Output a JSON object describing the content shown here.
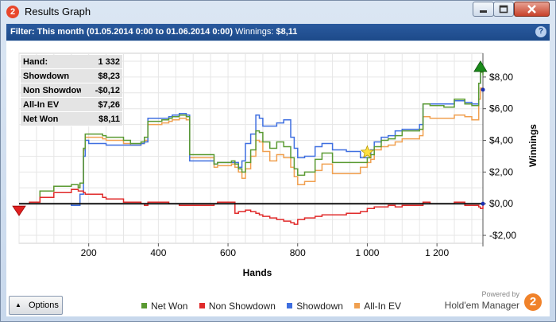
{
  "window": {
    "title": "Results Graph",
    "app_icon_text": "2",
    "minimize_icon": "minimize-icon",
    "maximize_icon": "maximize-icon",
    "close_icon": "close-icon"
  },
  "filter": {
    "label": "Filter:",
    "value": "This month (01.05.2014 0:00 to 01.06.2014 0:00)",
    "winnings_label": "Winnings:",
    "winnings_value": "$8,11",
    "help_text": "?"
  },
  "stats": [
    {
      "label": "Hand:",
      "value": "1 332"
    },
    {
      "label": "Showdown",
      "value": "$8,23"
    },
    {
      "label": "Non Showdown",
      "value": "-$0,12"
    },
    {
      "label": "All-In EV",
      "value": "$7,26"
    },
    {
      "label": "Net Won",
      "value": "$8,11"
    }
  ],
  "options_button": {
    "label": "Options",
    "arrow_icon": "triangle-up-icon"
  },
  "legend": [
    {
      "name": "Net Won",
      "color": "#5a9a32"
    },
    {
      "name": "Non Showdown",
      "color": "#e02b2b"
    },
    {
      "name": "Showdown",
      "color": "#3f6fe0"
    },
    {
      "name": "All-In EV",
      "color": "#f0a050"
    }
  ],
  "branding": {
    "powered_by": "Powered by",
    "name": "Hold'em Manager",
    "icon_text": "2"
  },
  "chart_data": {
    "type": "line",
    "xlabel": "Hands",
    "ylabel": "Winnings",
    "xlim": [
      0,
      1332
    ],
    "ylim": [
      -2.5,
      9.5
    ],
    "x_ticks": [
      {
        "value": 200,
        "label": "200"
      },
      {
        "value": 400,
        "label": "400"
      },
      {
        "value": 600,
        "label": "600"
      },
      {
        "value": 800,
        "label": "800"
      },
      {
        "value": 1000,
        "label": "1 000"
      },
      {
        "value": 1200,
        "label": "1 200"
      }
    ],
    "y_ticks": [
      {
        "value": 8,
        "label": "$8,00"
      },
      {
        "value": 6,
        "label": "$6,00"
      },
      {
        "value": 4,
        "label": "$4,00"
      },
      {
        "value": 2,
        "label": "$2,00"
      },
      {
        "value": 0,
        "label": "$0,00"
      },
      {
        "value": -2,
        "label": "-$2,00"
      }
    ],
    "grid": true,
    "x": [
      0,
      30,
      60,
      100,
      150,
      170,
      175,
      185,
      190,
      200,
      240,
      250,
      300,
      320,
      350,
      360,
      370,
      410,
      430,
      440,
      460,
      480,
      490,
      560,
      570,
      610,
      620,
      630,
      640,
      650,
      665,
      680,
      690,
      700,
      720,
      740,
      760,
      780,
      790,
      800,
      820,
      850,
      870,
      900,
      940,
      980,
      1000,
      1010,
      1020,
      1040,
      1060,
      1080,
      1100,
      1150,
      1160,
      1180,
      1220,
      1250,
      1280,
      1300,
      1320,
      1325,
      1332
    ],
    "series": [
      {
        "name": "Net Won",
        "color": "#5a9a32",
        "values": [
          0,
          0.1,
          0.8,
          1.1,
          1.2,
          1.0,
          1.3,
          3.5,
          4.4,
          4.4,
          4.3,
          4.2,
          4.0,
          3.8,
          3.9,
          4.2,
          5.2,
          5.3,
          5.4,
          5.5,
          5.6,
          5.5,
          3.1,
          2.5,
          2.6,
          2.7,
          2.5,
          2.2,
          2.0,
          2.6,
          3.4,
          4.6,
          4.5,
          3.9,
          3.5,
          3.9,
          3.6,
          2.9,
          2.2,
          1.8,
          2.0,
          2.8,
          3.2,
          2.6,
          2.6,
          2.6,
          2.9,
          3.1,
          3.6,
          4.0,
          4.1,
          4.3,
          4.6,
          4.7,
          6.3,
          6.2,
          6.1,
          6.6,
          6.3,
          6.2,
          7.6,
          8.3,
          8.11
        ]
      },
      {
        "name": "Non Showdown",
        "color": "#e02b2b",
        "values": [
          0,
          0.1,
          0.4,
          0.7,
          0.9,
          0.8,
          0.8,
          0.7,
          0.6,
          0.6,
          0.4,
          0.3,
          0.1,
          0.1,
          0,
          -0.1,
          0.1,
          0.1,
          0,
          0,
          -0.1,
          -0.1,
          -0.1,
          0,
          0.1,
          0.1,
          -0.6,
          -0.5,
          -0.5,
          -0.4,
          -0.5,
          -0.6,
          -0.7,
          -0.8,
          -0.9,
          -1.0,
          -1.1,
          -1.2,
          -1.3,
          -1.0,
          -0.9,
          -0.8,
          -0.7,
          -0.7,
          -0.6,
          -0.5,
          -0.3,
          -0.3,
          -0.2,
          -0.2,
          -0.1,
          -0.2,
          -0.1,
          -0.1,
          0.1,
          0,
          0,
          0.1,
          -0.1,
          -0.1,
          -0.2,
          -0.3,
          -0.12
        ]
      },
      {
        "name": "Showdown",
        "color": "#3f6fe0",
        "values": [
          0,
          0,
          0,
          0,
          -0.1,
          -0.1,
          0.6,
          3.0,
          4.0,
          3.8,
          3.8,
          3.7,
          3.7,
          3.7,
          3.8,
          3.9,
          5.4,
          5.4,
          5.5,
          5.6,
          5.7,
          5.6,
          2.7,
          2.5,
          2.6,
          2.6,
          2.6,
          2.3,
          2.7,
          3.8,
          4.4,
          5.6,
          5.4,
          4.9,
          4.9,
          5.1,
          5.3,
          4.2,
          3.5,
          2.9,
          3.0,
          3.6,
          3.8,
          3.4,
          3.3,
          2.9,
          2.9,
          3.4,
          3.9,
          4.2,
          4.3,
          4.6,
          4.7,
          5.0,
          6.3,
          6.3,
          6.3,
          6.5,
          6.4,
          6.3,
          7.6,
          8.5,
          8.23
        ]
      },
      {
        "name": "All-In EV",
        "color": "#f0a050",
        "values": [
          0,
          0.1,
          0.8,
          1.1,
          1.2,
          1.0,
          1.3,
          3.4,
          4.2,
          4.2,
          4.1,
          4.0,
          3.8,
          3.7,
          3.8,
          4.0,
          5.0,
          5.1,
          5.2,
          5.3,
          5.4,
          5.3,
          2.9,
          2.3,
          2.4,
          2.5,
          2.3,
          2.0,
          1.6,
          2.2,
          3.0,
          4.0,
          3.9,
          3.3,
          2.7,
          3.1,
          2.9,
          2.3,
          1.7,
          1.2,
          1.4,
          2.1,
          2.5,
          1.9,
          1.9,
          2.3,
          2.6,
          2.8,
          3.4,
          3.6,
          3.7,
          3.9,
          4.1,
          4.3,
          5.5,
          5.4,
          5.4,
          5.6,
          5.5,
          5.3,
          6.6,
          7.3,
          7.26
        ]
      }
    ],
    "zero_line": 0
  }
}
